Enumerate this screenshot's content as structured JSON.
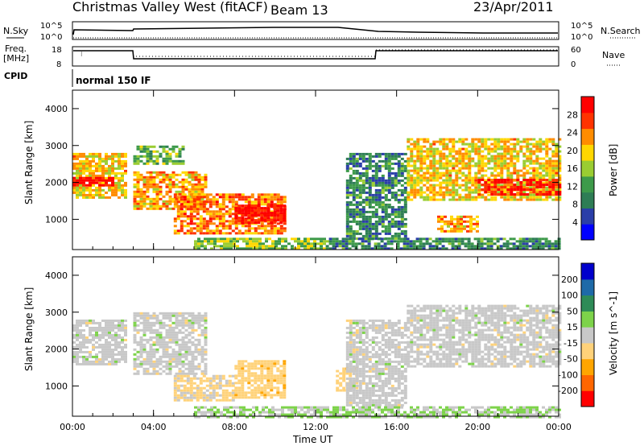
{
  "title": {
    "station": "Christmas Valley West (fitACF)",
    "beam": "Beam 13",
    "date": "23/Apr/2011"
  },
  "header_panels": {
    "nsky": {
      "label": "N.Sky",
      "left_ticks": [
        "10^5",
        "10^0"
      ],
      "right_ticks": [
        "10^5",
        "10^0"
      ],
      "right_label": "N.Search"
    },
    "freq": {
      "label_line1": "Freq.",
      "label_line2": "[MHz]",
      "left_ticks": [
        "18",
        "8"
      ],
      "right_ticks": [
        "60",
        "0"
      ],
      "right_label": "Nave"
    },
    "cpid": {
      "label": "CPID",
      "value": "normal 150 IF"
    }
  },
  "x_axis": {
    "label": "Time UT",
    "ticks": [
      "00:00",
      "04:00",
      "08:00",
      "12:00",
      "16:00",
      "20:00",
      "00:00"
    ]
  },
  "colors": {
    "power": [
      "#0000ff",
      "#2a3ea8",
      "#2e7d55",
      "#3d9a4a",
      "#9acd32",
      "#ffd700",
      "#ff8c00",
      "#ff3300",
      "#ff0000"
    ],
    "velocity": [
      "#ff0000",
      "#ff6600",
      "#ffa500",
      "#ffd27a",
      "#c8c8c8",
      "#7dd34a",
      "#2e8b57",
      "#1e6aa8",
      "#0000cc"
    ]
  },
  "chart_data": [
    {
      "type": "heatmap",
      "name": "Power",
      "ylabel": "Slant Range [km]",
      "xlabel": "Time UT",
      "x_range_hours": [
        0,
        24
      ],
      "ylim": [
        180,
        4500
      ],
      "yticks": [
        "1000",
        "2000",
        "3000",
        "4000"
      ],
      "colorbar_label": "Power [dB]",
      "colorbar_ticks": [
        "4",
        "8",
        "12",
        "16",
        "20",
        "24",
        "28"
      ],
      "colorbar_range": [
        0,
        32
      ],
      "echo_regions": [
        {
          "t": [
            0.0,
            2.7
          ],
          "r": [
            1600,
            2800
          ],
          "level": 20
        },
        {
          "t": [
            0.0,
            2.0
          ],
          "r": [
            1950,
            2150
          ],
          "level": 30
        },
        {
          "t": [
            3.0,
            5.5
          ],
          "r": [
            2500,
            3000
          ],
          "level": 14
        },
        {
          "t": [
            3.0,
            6.5
          ],
          "r": [
            1300,
            2300
          ],
          "level": 22
        },
        {
          "t": [
            5.0,
            10.5
          ],
          "r": [
            600,
            1700
          ],
          "level": 24
        },
        {
          "t": [
            8.0,
            10.5
          ],
          "r": [
            900,
            1400
          ],
          "level": 30
        },
        {
          "t": [
            6.0,
            12.5
          ],
          "r": [
            180,
            500
          ],
          "level": 16
        },
        {
          "t": [
            13.5,
            16.5
          ],
          "r": [
            500,
            2800
          ],
          "level": 10
        },
        {
          "t": [
            16.5,
            24.0
          ],
          "r": [
            1500,
            3200
          ],
          "level": 20
        },
        {
          "t": [
            20.0,
            24.0
          ],
          "r": [
            1700,
            2100
          ],
          "level": 29
        },
        {
          "t": [
            18.0,
            20.0
          ],
          "r": [
            700,
            1100
          ],
          "level": 22
        },
        {
          "t": [
            12.5,
            24.0
          ],
          "r": [
            180,
            500
          ],
          "level": 10
        }
      ]
    },
    {
      "type": "heatmap",
      "name": "Velocity",
      "ylabel": "Slant Range [km]",
      "xlabel": "Time UT",
      "x_range_hours": [
        0,
        24
      ],
      "ylim": [
        180,
        4500
      ],
      "yticks": [
        "1000",
        "2000",
        "3000",
        "4000"
      ],
      "colorbar_label": "Velocity [m s^-1]",
      "colorbar_ticks": [
        "-200",
        "-100",
        "-50",
        "-15",
        "15",
        "50",
        "100",
        "200"
      ],
      "colorbar_range": [
        -250,
        250
      ],
      "echo_regions": [
        {
          "t": [
            0.0,
            2.7
          ],
          "r": [
            1600,
            2800
          ],
          "level": 0
        },
        {
          "t": [
            3.0,
            6.5
          ],
          "r": [
            1300,
            3000
          ],
          "level": 0
        },
        {
          "t": [
            5.0,
            8.0
          ],
          "r": [
            600,
            1300
          ],
          "level": -40
        },
        {
          "t": [
            8.0,
            10.5
          ],
          "r": [
            700,
            1700
          ],
          "level": -60
        },
        {
          "t": [
            13.0,
            14.0
          ],
          "r": [
            900,
            1500
          ],
          "level": -60
        },
        {
          "t": [
            13.5,
            16.5
          ],
          "r": [
            500,
            2800
          ],
          "level": 0
        },
        {
          "t": [
            16.5,
            24.0
          ],
          "r": [
            1500,
            3200
          ],
          "level": 0
        },
        {
          "t": [
            6.0,
            24.0
          ],
          "r": [
            180,
            450
          ],
          "level": 30
        }
      ]
    }
  ]
}
